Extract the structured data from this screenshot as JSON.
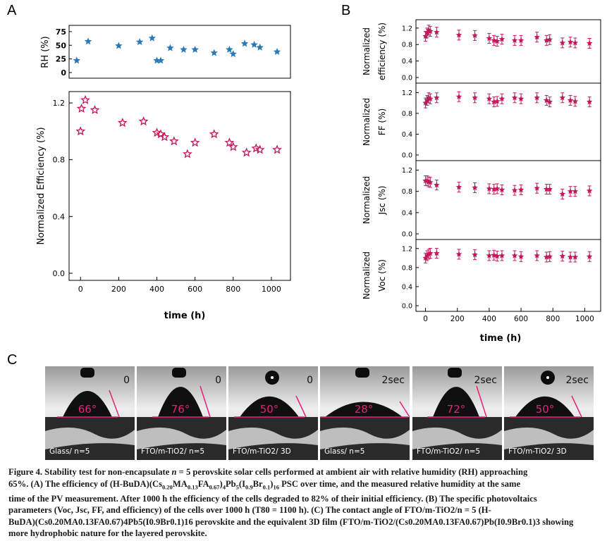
{
  "panels": {
    "a": "A",
    "b": "B",
    "c": "C"
  },
  "chart_data": [
    {
      "type": "scatter",
      "panel": "A-top",
      "ylabel": "RH (%)",
      "yticks": [
        "0",
        "25",
        "50",
        "75"
      ],
      "ylim": [
        0,
        80
      ],
      "xlim": [
        -60,
        1100
      ],
      "marker": "star",
      "color": "#2a7bb5",
      "x": [
        -20,
        40,
        200,
        310,
        375,
        400,
        420,
        470,
        540,
        600,
        700,
        780,
        800,
        860,
        910,
        940,
        1030
      ],
      "y": [
        22,
        57,
        49,
        56,
        63,
        22,
        22,
        45,
        42,
        42,
        36,
        42,
        34,
        53,
        51,
        46,
        38
      ]
    },
    {
      "type": "scatter",
      "panel": "A-bottom",
      "xlabel": "time (h)",
      "ylabel": "Normalized Efficiency (%)",
      "xticks": [
        "0",
        "200",
        "400",
        "600",
        "800",
        "1000"
      ],
      "yticks": [
        "0.0",
        "0.4",
        "0.8",
        "1.2"
      ],
      "xlim": [
        -60,
        1100
      ],
      "ylim": [
        -0.05,
        1.28
      ],
      "marker": "star",
      "color": "#c2185b",
      "x": [
        0,
        5,
        25,
        75,
        220,
        330,
        400,
        420,
        440,
        490,
        560,
        600,
        700,
        780,
        800,
        870,
        920,
        940,
        1030
      ],
      "y": [
        1.0,
        1.16,
        1.22,
        1.15,
        1.06,
        1.07,
        0.99,
        0.98,
        0.96,
        0.93,
        0.84,
        0.92,
        0.98,
        0.92,
        0.89,
        0.85,
        0.88,
        0.87,
        0.87
      ]
    },
    {
      "type": "scatter",
      "panel": "B",
      "xlabel": "time (h)",
      "xticks": [
        "0",
        "200",
        "400",
        "600",
        "800",
        "1000"
      ],
      "xlim": [
        -60,
        1100
      ],
      "marker": "star",
      "color": "#c2185b",
      "x": [
        0,
        10,
        20,
        30,
        70,
        210,
        310,
        400,
        430,
        450,
        480,
        560,
        600,
        700,
        760,
        780,
        860,
        910,
        940,
        1030
      ],
      "subplots": [
        {
          "ylabel": [
            "Normalized",
            "efficiency (%)"
          ],
          "yticks": [
            "0.0",
            "0.4",
            "0.8",
            "1.2"
          ],
          "ylim": [
            0,
            1.3
          ],
          "y": [
            1.0,
            1.08,
            1.15,
            1.12,
            1.1,
            1.03,
            1.02,
            0.95,
            0.9,
            0.88,
            0.93,
            0.9,
            0.9,
            0.98,
            0.9,
            0.92,
            0.84,
            0.86,
            0.84,
            0.83
          ]
        },
        {
          "ylabel": [
            "Normalized",
            "FF (%)"
          ],
          "yticks": [
            "0.0",
            "0.4",
            "0.8",
            "1.2"
          ],
          "ylim": [
            0,
            1.3
          ],
          "y": [
            1.0,
            1.05,
            1.1,
            1.08,
            1.1,
            1.12,
            1.1,
            1.08,
            1.02,
            1.03,
            1.08,
            1.1,
            1.08,
            1.1,
            1.05,
            1.02,
            1.1,
            1.05,
            1.03,
            1.02
          ]
        },
        {
          "ylabel": [
            "Normalized",
            "Jsc (%)"
          ],
          "yticks": [
            "0.0",
            "0.4",
            "0.8",
            "1.2"
          ],
          "ylim": [
            0,
            1.3
          ],
          "y": [
            1.0,
            1.0,
            0.98,
            0.97,
            0.92,
            0.88,
            0.87,
            0.85,
            0.84,
            0.85,
            0.83,
            0.82,
            0.83,
            0.86,
            0.84,
            0.84,
            0.75,
            0.8,
            0.8,
            0.81
          ]
        },
        {
          "ylabel": [
            "Normalized",
            "Voc (%)"
          ],
          "yticks": [
            "0.0",
            "0.4",
            "0.8",
            "1.2"
          ],
          "ylim": [
            0,
            1.3
          ],
          "y": [
            1.0,
            1.05,
            1.08,
            1.1,
            1.1,
            1.08,
            1.07,
            1.05,
            1.06,
            1.04,
            1.05,
            1.05,
            1.03,
            1.05,
            1.02,
            1.03,
            1.04,
            1.02,
            1.02,
            1.03
          ]
        }
      ]
    }
  ],
  "photos": [
    {
      "time": "0",
      "angle": "66°",
      "label": "Glass/ n=5"
    },
    {
      "time": "0",
      "angle": "76°",
      "label": "FTO/m-TiO2/ n=5"
    },
    {
      "time": "0",
      "angle": "50°",
      "label": "FTO/m-TiO2/ 3D"
    },
    {
      "time": "2sec",
      "angle": "28°",
      "label": "Glass/ n=5"
    },
    {
      "time": "2sec",
      "angle": "72°",
      "label": "FTO/m-TiO2/ n=5"
    },
    {
      "time": "2sec",
      "angle": "50°",
      "label": "FTO/m-TiO2/ 3D"
    }
  ],
  "caption": {
    "line1_a": "Figure 4. Stability test for non-encapsulate ",
    "n": "n",
    "line1_b": " = 5 perovskite solar cells performed at ambient air with relative humidity (RH) approaching",
    "line2_a": "65%. (A) The efficiency of (H-BuDA)(Cs",
    "line2_b": " PSC over time, and the measured relative humidity at the same",
    "line3": "time of the PV measurement. After 1000 h the efficiency of the cells degraded to 82% of their initial efficiency. (B) The specific photovoltaics",
    "line4": "parameters (Voc, Jsc, FF, and efficiency) of the cells over 1000 h (T80 = 1100 h). (C) The contact angle of FTO/m-TiO2/n = 5 (H-",
    "line5": "BuDA)(Cs0.20MA0.13FA0.67)4Pb5(I0.9Br0.1)16 perovskite and the equivalent 3D film (FTO/m-TiO2/(Cs0.20MA0.13FA0.67)Pb(I0.9Br0.1)3 showing",
    "line6": "more hydrophobic nature for the layered perovskite."
  }
}
